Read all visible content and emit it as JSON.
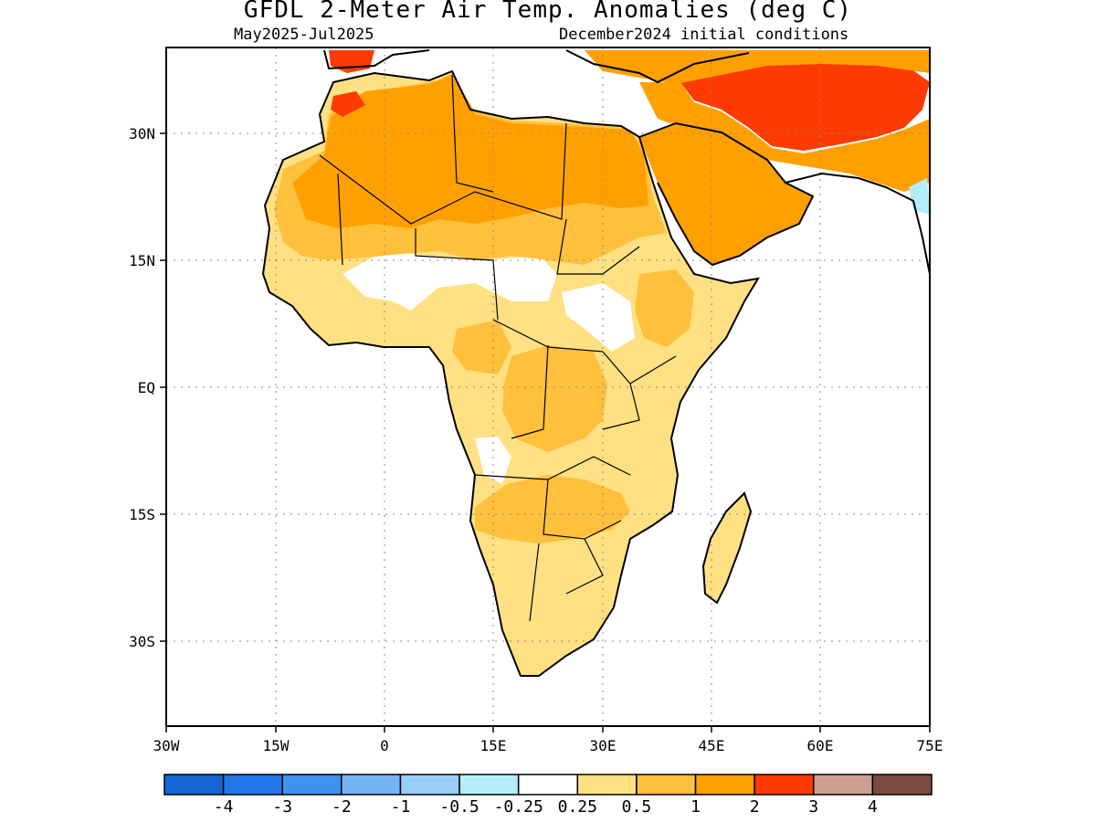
{
  "title": "GFDL 2-Meter Air Temp. Anomalies (deg C)",
  "subtitle_left": "May2025-Jul2025",
  "subtitle_right": "December2024 initial conditions",
  "map": {
    "region": "Africa and Middle East",
    "lon_range": [
      -30,
      75
    ],
    "lat_range": [
      -40,
      40
    ],
    "x_ticks": [
      {
        "lon": -30,
        "label": "30W"
      },
      {
        "lon": -15,
        "label": "15W"
      },
      {
        "lon": 0,
        "label": "0"
      },
      {
        "lon": 15,
        "label": "15E"
      },
      {
        "lon": 30,
        "label": "30E"
      },
      {
        "lon": 45,
        "label": "45E"
      },
      {
        "lon": 60,
        "label": "60E"
      },
      {
        "lon": 75,
        "label": "75E"
      }
    ],
    "y_ticks": [
      {
        "lat": 30,
        "label": "30N"
      },
      {
        "lat": 15,
        "label": "15N"
      },
      {
        "lat": 0,
        "label": "EQ"
      },
      {
        "lat": -15,
        "label": "15S"
      },
      {
        "lat": -30,
        "label": "30S"
      }
    ],
    "grid": "dotted"
  },
  "colorbar": {
    "colors": [
      "#1565d4",
      "#2377eb",
      "#3f91f0",
      "#74b4f5",
      "#98cdf7",
      "#b3edfa",
      "#ffffff",
      "#ffe082",
      "#ffc03c",
      "#ffa000",
      "#ff3a00",
      "#cba08f",
      "#7b4a3e"
    ],
    "labels": [
      "-4",
      "-3",
      "-2",
      "-1",
      "-0.5",
      "-0.25",
      "0.25",
      "0.5",
      "1",
      "2",
      "3",
      "4"
    ]
  }
}
